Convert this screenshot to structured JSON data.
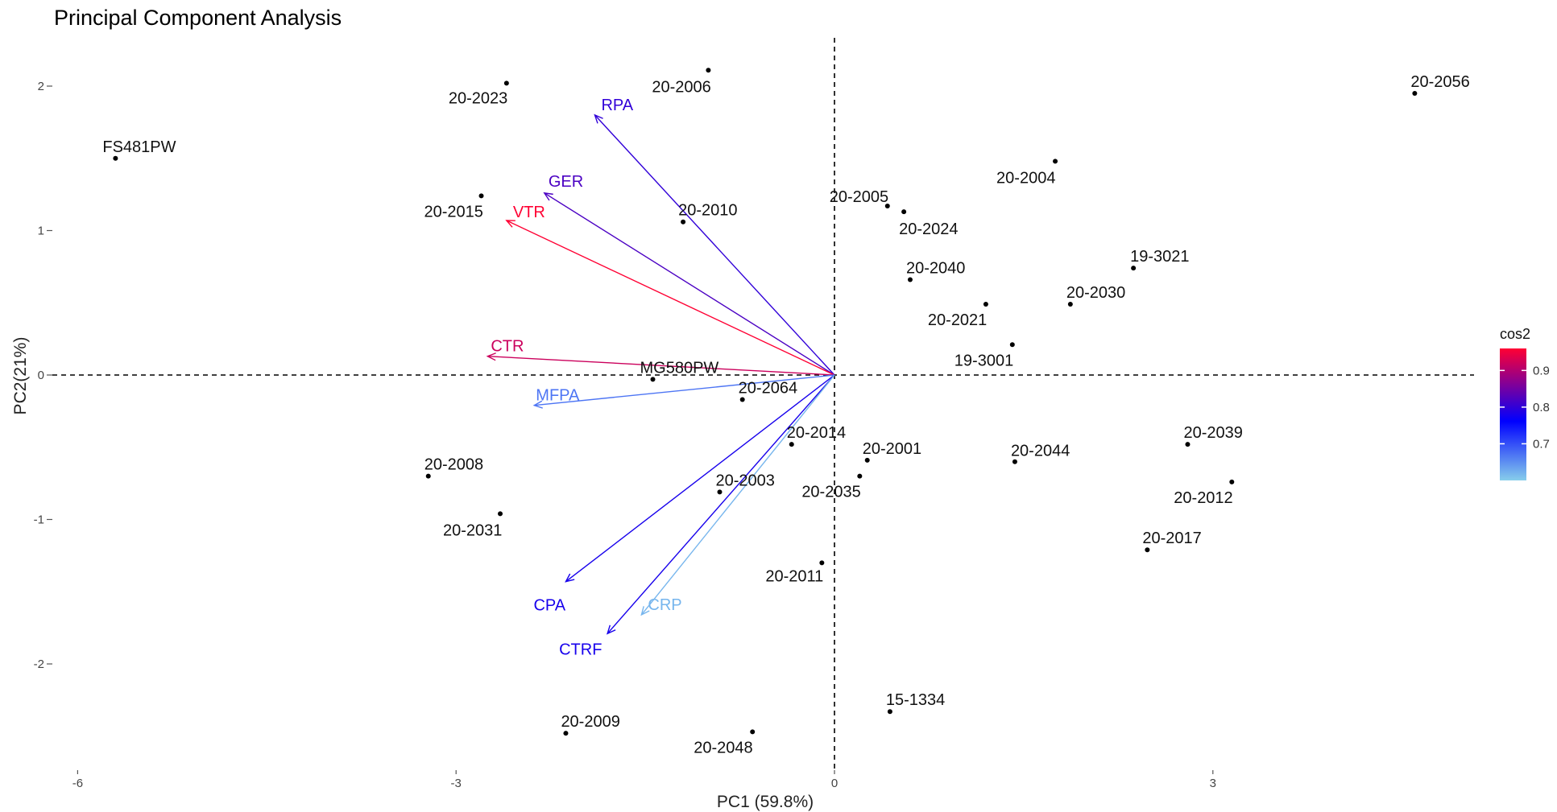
{
  "chart_data": {
    "type": "biplot",
    "title": "Principal Component Analysis",
    "xlabel": "PC1 (59.8%)",
    "ylabel": "PC2(21%)",
    "xticks": [
      -6,
      -3,
      0,
      3
    ],
    "yticks": [
      -2,
      -1,
      0,
      1,
      2
    ],
    "xlim": [
      -6.5,
      5.1
    ],
    "ylim": [
      -2.72,
      2.35
    ],
    "reference_lines": {
      "x": 0,
      "y": 0,
      "style": "dashed"
    },
    "points": [
      {
        "label": "20-2056",
        "x": 4.6,
        "y": 1.95
      },
      {
        "label": "FS481PW",
        "x": -5.7,
        "y": 1.5
      },
      {
        "label": "20-2023",
        "x": -2.6,
        "y": 2.02
      },
      {
        "label": "20-2006",
        "x": -1.0,
        "y": 2.11
      },
      {
        "label": "20-2004",
        "x": 1.75,
        "y": 1.48
      },
      {
        "label": "20-2015",
        "x": -2.8,
        "y": 1.24
      },
      {
        "label": "20-2010",
        "x": -1.2,
        "y": 1.06
      },
      {
        "label": "20-2005",
        "x": 0.42,
        "y": 1.17
      },
      {
        "label": "20-2024",
        "x": 0.55,
        "y": 1.13
      },
      {
        "label": "19-3021",
        "x": 2.37,
        "y": 0.74
      },
      {
        "label": "20-2040",
        "x": 0.6,
        "y": 0.66
      },
      {
        "label": "20-2030",
        "x": 1.87,
        "y": 0.49
      },
      {
        "label": "20-2021",
        "x": 1.2,
        "y": 0.49
      },
      {
        "label": "19-3001",
        "x": 1.41,
        "y": 0.21
      },
      {
        "label": "MG580PW",
        "x": -1.44,
        "y": -0.03
      },
      {
        "label": "20-2064",
        "x": -0.73,
        "y": -0.17
      },
      {
        "label": "20-2014",
        "x": -0.34,
        "y": -0.48
      },
      {
        "label": "20-2001",
        "x": 0.26,
        "y": -0.59
      },
      {
        "label": "20-2035",
        "x": 0.2,
        "y": -0.7
      },
      {
        "label": "20-2003",
        "x": -0.91,
        "y": -0.81
      },
      {
        "label": "20-2044",
        "x": 1.43,
        "y": -0.6
      },
      {
        "label": "20-2039",
        "x": 2.8,
        "y": -0.48
      },
      {
        "label": "20-2012",
        "x": 3.15,
        "y": -0.74
      },
      {
        "label": "20-2017",
        "x": 2.48,
        "y": -1.21
      },
      {
        "label": "20-2008",
        "x": -3.22,
        "y": -0.7
      },
      {
        "label": "20-2031",
        "x": -2.65,
        "y": -0.96
      },
      {
        "label": "20-2011",
        "x": -0.1,
        "y": -1.3
      },
      {
        "label": "15-1334",
        "x": 0.44,
        "y": -2.33
      },
      {
        "label": "20-2009",
        "x": -2.13,
        "y": -2.48
      },
      {
        "label": "20-2048",
        "x": -0.65,
        "y": -2.47
      }
    ],
    "variables": [
      {
        "label": "RPA",
        "x": -1.9,
        "y": 1.8,
        "cos2": 0.8
      },
      {
        "label": "GER",
        "x": -2.3,
        "y": 1.26,
        "cos2": 0.82
      },
      {
        "label": "VTR",
        "x": -2.6,
        "y": 1.07,
        "cos2": 0.96
      },
      {
        "label": "CTR",
        "x": -2.75,
        "y": 0.13,
        "cos2": 0.92
      },
      {
        "label": "MFPA",
        "x": -2.38,
        "y": -0.21,
        "cos2": 0.67
      },
      {
        "label": "CPA",
        "x": -2.13,
        "y": -1.43,
        "cos2": 0.78
      },
      {
        "label": "CTRF",
        "x": -1.8,
        "y": -1.79,
        "cos2": 0.78
      },
      {
        "label": "CRP",
        "x": -1.53,
        "y": -1.66,
        "cos2": 0.62
      }
    ],
    "legend": {
      "title": "cos2",
      "position": "right",
      "ticks": [
        0.7,
        0.8,
        0.9
      ],
      "range": [
        0.6,
        0.96
      ],
      "colors": {
        "low": "#87ceeb",
        "mid": "#0000ff",
        "high": "#ff0033"
      }
    },
    "colors": {
      "points": "#000000",
      "reference_line": "#000000"
    }
  }
}
